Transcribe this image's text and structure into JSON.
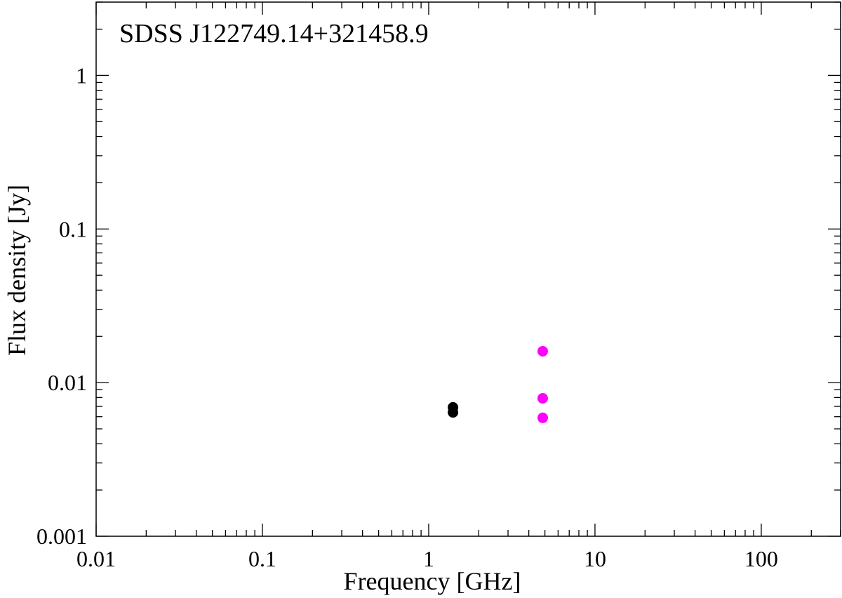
{
  "chart_data": {
    "type": "scatter",
    "title": "SDSS J122749.14+321458.9",
    "xlabel": "Frequency [GHz]",
    "ylabel": "Flux density [Jy]",
    "xscale": "log",
    "yscale": "log",
    "xlim": [
      0.01,
      300
    ],
    "ylim": [
      0.001,
      3
    ],
    "grid": false,
    "x_ticks": [
      {
        "value": 0.01,
        "label": "0.01"
      },
      {
        "value": 0.1,
        "label": "0.1"
      },
      {
        "value": 1,
        "label": "1"
      },
      {
        "value": 10,
        "label": "10"
      },
      {
        "value": 100,
        "label": "100"
      }
    ],
    "y_ticks": [
      {
        "value": 0.001,
        "label": "0.001"
      },
      {
        "value": 0.01,
        "label": "0.01"
      },
      {
        "value": 0.1,
        "label": "0.1"
      },
      {
        "value": 1,
        "label": "1"
      }
    ],
    "series": [
      {
        "color": "#000000",
        "points": [
          {
            "x": 1.4,
            "y": 0.0069
          },
          {
            "x": 1.4,
            "y": 0.0064
          }
        ]
      },
      {
        "color": "#ff00ff",
        "points": [
          {
            "x": 4.85,
            "y": 0.016
          },
          {
            "x": 4.85,
            "y": 0.0079
          },
          {
            "x": 4.85,
            "y": 0.0059
          }
        ]
      }
    ]
  }
}
